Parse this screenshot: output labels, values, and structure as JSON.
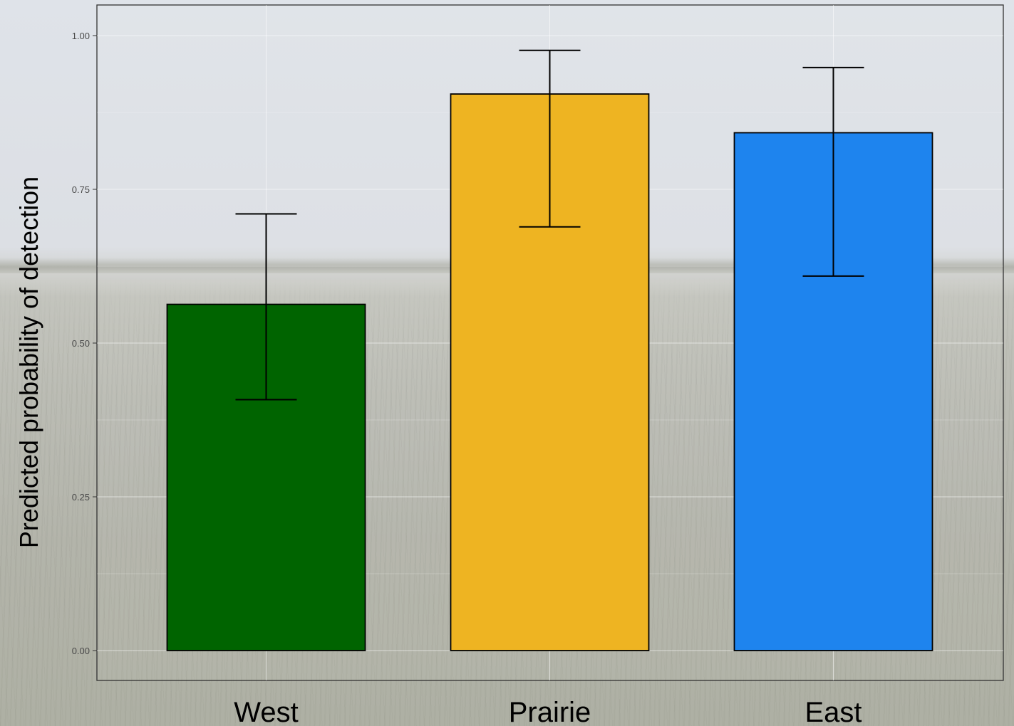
{
  "chart_data": {
    "type": "bar",
    "categories": [
      "West",
      "Prairie",
      "East"
    ],
    "values": [
      0.563,
      0.905,
      0.842
    ],
    "error_low": [
      0.408,
      0.689,
      0.609
    ],
    "error_high": [
      0.71,
      0.976,
      0.948
    ],
    "colors": [
      "#006400",
      "#EEB422",
      "#1E84EE"
    ],
    "ylabel": "Predicted probability of detection",
    "xlabel": "",
    "title": "",
    "ylim": [
      0,
      1.0
    ],
    "yticks": [
      "0.00",
      "0.25",
      "0.50",
      "0.75",
      "1.00"
    ],
    "grid": true,
    "legend": "none"
  }
}
